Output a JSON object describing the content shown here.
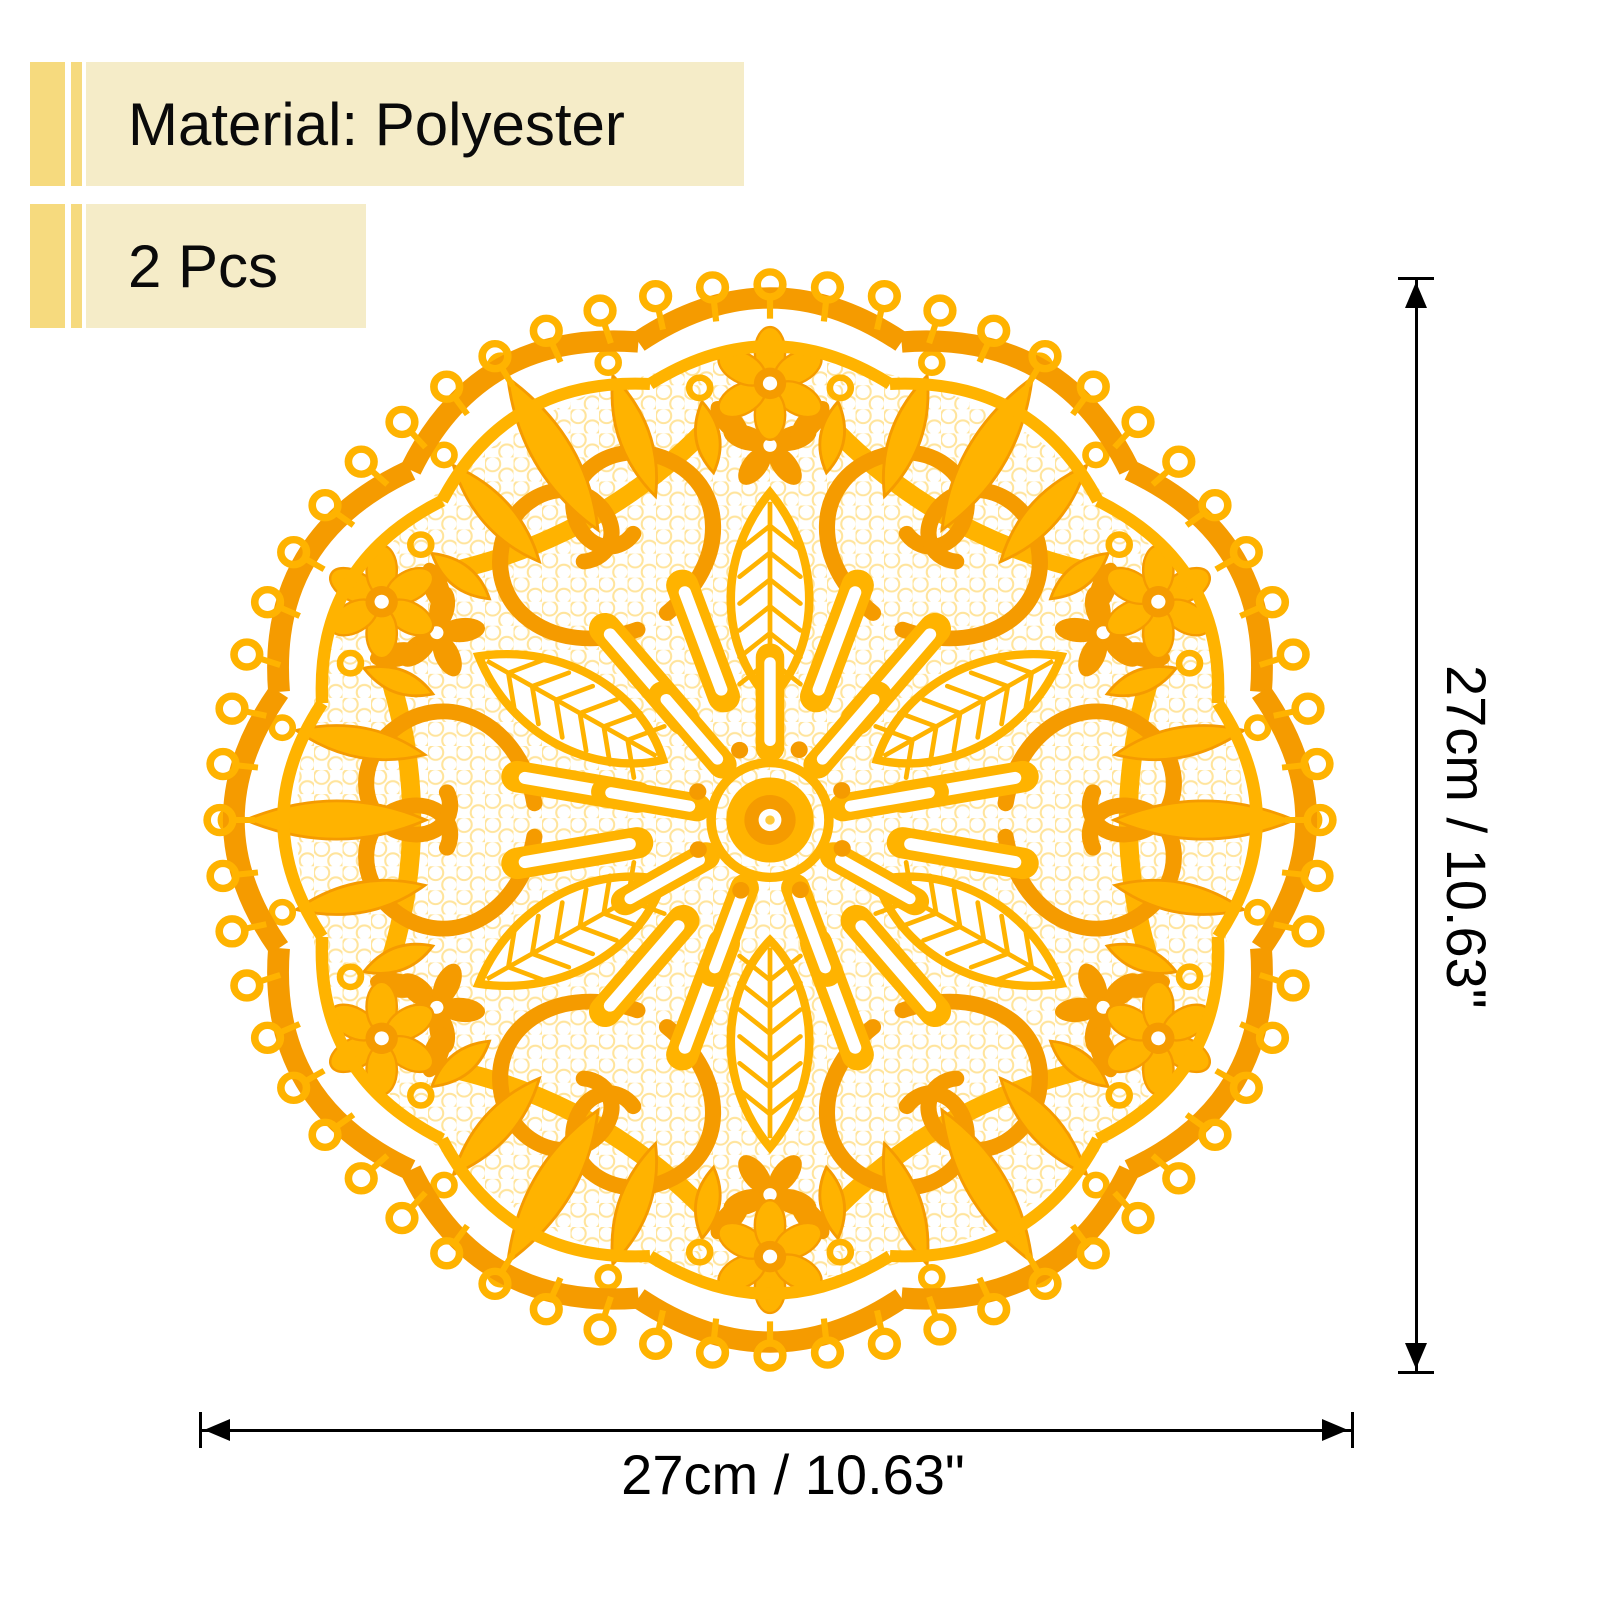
{
  "product_labels": {
    "material": "Material: Polyester",
    "quantity": "2 Pcs"
  },
  "dimension_annotations": {
    "vertical_label": "27cm / 10.63\"",
    "horizontal_label": "27cm / 10.63\""
  },
  "image": {
    "subject": "round-lace-doily-placemat"
  },
  "colors": {
    "doily_main": "#FFB300",
    "doily_deep": "#F59B00",
    "doily_light": "#FFC93A",
    "accent_bar": "#F6DA7E",
    "label_background": "#F5ECC8",
    "text": "#0a0a0a",
    "dimension": "#000000"
  }
}
